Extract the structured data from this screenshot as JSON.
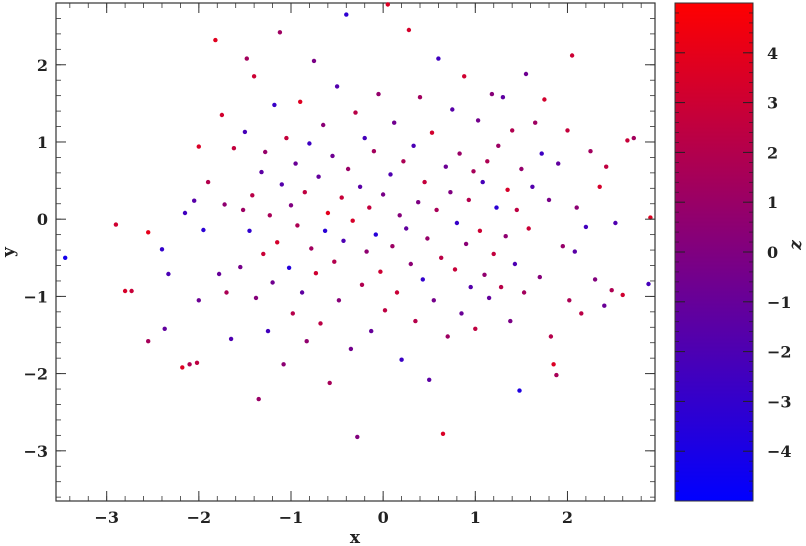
{
  "chart_data": {
    "type": "scatter",
    "title": "",
    "xlabel": "x",
    "ylabel": "y",
    "colorbar_label": "z",
    "xlim": [
      -3.55,
      2.95
    ],
    "ylim": [
      -3.65,
      2.8
    ],
    "zlim": [
      -5,
      5
    ],
    "x_ticks": [
      -3,
      -2,
      -1,
      0,
      1,
      2
    ],
    "y_ticks": [
      -3,
      -2,
      -1,
      0,
      1,
      2
    ],
    "z_ticks": [
      -4,
      -3,
      -2,
      -1,
      0,
      1,
      2,
      3,
      4
    ],
    "colormap": {
      "low": "#0000ff",
      "high": "#ff0000"
    },
    "grid": false,
    "legend": "none",
    "marker_size": 2.2,
    "points": [
      {
        "x": -3.45,
        "y": -0.5,
        "z": -4.2
      },
      {
        "x": -2.9,
        "y": -0.07,
        "z": 3.1
      },
      {
        "x": -2.8,
        "y": -0.93,
        "z": 3.4
      },
      {
        "x": -2.73,
        "y": -0.93,
        "z": 2.8
      },
      {
        "x": -2.55,
        "y": -1.58,
        "z": 1.5
      },
      {
        "x": -2.55,
        "y": -0.17,
        "z": 4.0
      },
      {
        "x": -2.4,
        "y": -0.39,
        "z": -3.0
      },
      {
        "x": -2.37,
        "y": -1.42,
        "z": -1.2
      },
      {
        "x": -2.33,
        "y": -0.71,
        "z": -2.1
      },
      {
        "x": -2.18,
        "y": -1.92,
        "z": 3.6
      },
      {
        "x": -2.15,
        "y": 0.08,
        "z": -2.5
      },
      {
        "x": -2.1,
        "y": -1.88,
        "z": 1.9
      },
      {
        "x": -2.05,
        "y": 0.24,
        "z": -1.6
      },
      {
        "x": -2.02,
        "y": -1.86,
        "z": 2.4
      },
      {
        "x": -2.0,
        "y": -1.05,
        "z": -0.8
      },
      {
        "x": -2.0,
        "y": 0.94,
        "z": 3.5
      },
      {
        "x": -1.95,
        "y": -0.14,
        "z": -3.3
      },
      {
        "x": -1.9,
        "y": 0.48,
        "z": 2.0
      },
      {
        "x": -1.82,
        "y": 2.32,
        "z": 3.8
      },
      {
        "x": -1.78,
        "y": -0.71,
        "z": -1.0
      },
      {
        "x": -1.75,
        "y": 1.35,
        "z": 3.2
      },
      {
        "x": -1.72,
        "y": 0.19,
        "z": 0.6
      },
      {
        "x": -1.7,
        "y": -0.95,
        "z": 1.7
      },
      {
        "x": -1.65,
        "y": -1.55,
        "z": -1.9
      },
      {
        "x": -1.62,
        "y": 0.92,
        "z": 2.6
      },
      {
        "x": -1.55,
        "y": -0.62,
        "z": -0.4
      },
      {
        "x": -1.52,
        "y": 0.12,
        "z": 1.1
      },
      {
        "x": -1.5,
        "y": 1.13,
        "z": -2.2
      },
      {
        "x": -1.48,
        "y": 2.08,
        "z": 1.4
      },
      {
        "x": -1.45,
        "y": -0.15,
        "z": -3.1
      },
      {
        "x": -1.42,
        "y": 0.31,
        "z": 2.2
      },
      {
        "x": -1.4,
        "y": 1.85,
        "z": 3.0
      },
      {
        "x": -1.38,
        "y": -1.02,
        "z": 0.2
      },
      {
        "x": -1.35,
        "y": -2.33,
        "z": 1.0
      },
      {
        "x": -1.32,
        "y": 0.61,
        "z": -1.4
      },
      {
        "x": -1.3,
        "y": -0.45,
        "z": 2.9
      },
      {
        "x": -1.28,
        "y": 0.87,
        "z": 0.9
      },
      {
        "x": -1.25,
        "y": -1.45,
        "z": -2.4
      },
      {
        "x": -1.23,
        "y": 0.05,
        "z": 1.6
      },
      {
        "x": -1.2,
        "y": -0.82,
        "z": -0.6
      },
      {
        "x": -1.18,
        "y": 1.48,
        "z": -2.8
      },
      {
        "x": -1.15,
        "y": -0.3,
        "z": 3.3
      },
      {
        "x": -1.12,
        "y": 2.42,
        "z": 1.2
      },
      {
        "x": -1.1,
        "y": 0.45,
        "z": -1.7
      },
      {
        "x": -1.08,
        "y": -1.88,
        "z": 0.5
      },
      {
        "x": -1.05,
        "y": 1.05,
        "z": 2.7
      },
      {
        "x": -1.02,
        "y": -0.63,
        "z": -3.6
      },
      {
        "x": -1.0,
        "y": 0.18,
        "z": 0.0
      },
      {
        "x": -0.98,
        "y": -1.22,
        "z": 2.1
      },
      {
        "x": -0.95,
        "y": 0.72,
        "z": -0.9
      },
      {
        "x": -0.93,
        "y": -0.08,
        "z": 1.8
      },
      {
        "x": -0.9,
        "y": 1.52,
        "z": 3.7
      },
      {
        "x": -0.88,
        "y": -0.95,
        "z": -1.3
      },
      {
        "x": -0.85,
        "y": 0.35,
        "z": 2.5
      },
      {
        "x": -0.83,
        "y": -1.58,
        "z": 0.7
      },
      {
        "x": -0.8,
        "y": 0.98,
        "z": -2.6
      },
      {
        "x": -0.78,
        "y": -0.38,
        "z": 1.3
      },
      {
        "x": -0.75,
        "y": 2.05,
        "z": -0.2
      },
      {
        "x": -0.73,
        "y": -0.7,
        "z": 3.1
      },
      {
        "x": -0.7,
        "y": 0.55,
        "z": -1.1
      },
      {
        "x": -0.68,
        "y": -1.35,
        "z": 2.3
      },
      {
        "x": -0.65,
        "y": 1.22,
        "z": 0.4
      },
      {
        "x": -0.63,
        "y": -0.15,
        "z": -3.4
      },
      {
        "x": -0.6,
        "y": 0.08,
        "z": 3.9
      },
      {
        "x": -0.58,
        "y": -2.12,
        "z": 1.5
      },
      {
        "x": -0.55,
        "y": 0.82,
        "z": -0.7
      },
      {
        "x": -0.53,
        "y": -0.55,
        "z": 2.0
      },
      {
        "x": -0.5,
        "y": 1.72,
        "z": -1.8
      },
      {
        "x": -0.48,
        "y": -1.05,
        "z": 0.3
      },
      {
        "x": -0.45,
        "y": 0.28,
        "z": 2.8
      },
      {
        "x": -0.43,
        "y": -0.28,
        "z": -2.0
      },
      {
        "x": -0.4,
        "y": 2.65,
        "z": -3.2
      },
      {
        "x": -0.38,
        "y": 0.65,
        "z": 1.0
      },
      {
        "x": -0.35,
        "y": -1.68,
        "z": -0.5
      },
      {
        "x": -0.33,
        "y": -0.02,
        "z": 3.4
      },
      {
        "x": -0.3,
        "y": 1.38,
        "z": 2.2
      },
      {
        "x": -0.28,
        "y": -2.82,
        "z": 0.1
      },
      {
        "x": -0.25,
        "y": 0.42,
        "z": -1.5
      },
      {
        "x": -0.23,
        "y": -0.85,
        "z": 1.9
      },
      {
        "x": -0.2,
        "y": 1.05,
        "z": -2.3
      },
      {
        "x": -0.18,
        "y": -0.42,
        "z": 0.6
      },
      {
        "x": -0.15,
        "y": 0.15,
        "z": 2.6
      },
      {
        "x": -0.13,
        "y": -1.45,
        "z": -1.0
      },
      {
        "x": -0.1,
        "y": 0.88,
        "z": 1.4
      },
      {
        "x": -0.08,
        "y": -0.2,
        "z": -3.5
      },
      {
        "x": -0.05,
        "y": 1.62,
        "z": 0.8
      },
      {
        "x": -0.03,
        "y": -0.68,
        "z": 3.0
      },
      {
        "x": 0.0,
        "y": 0.32,
        "z": -0.3
      },
      {
        "x": 0.02,
        "y": -1.18,
        "z": 2.4
      },
      {
        "x": 0.05,
        "y": 2.78,
        "z": 3.6
      },
      {
        "x": 0.08,
        "y": 0.58,
        "z": -1.9
      },
      {
        "x": 0.1,
        "y": -0.35,
        "z": 1.1
      },
      {
        "x": 0.12,
        "y": 1.25,
        "z": -0.6
      },
      {
        "x": 0.15,
        "y": -0.95,
        "z": 2.9
      },
      {
        "x": 0.18,
        "y": 0.05,
        "z": 0.2
      },
      {
        "x": 0.2,
        "y": -1.82,
        "z": -2.7
      },
      {
        "x": 0.22,
        "y": 0.75,
        "z": 1.7
      },
      {
        "x": 0.25,
        "y": -0.12,
        "z": -1.2
      },
      {
        "x": 0.28,
        "y": 2.45,
        "z": 3.3
      },
      {
        "x": 0.3,
        "y": -0.58,
        "z": 0.5
      },
      {
        "x": 0.33,
        "y": 0.95,
        "z": -2.1
      },
      {
        "x": 0.35,
        "y": -1.32,
        "z": 2.1
      },
      {
        "x": 0.38,
        "y": 0.22,
        "z": -0.1
      },
      {
        "x": 0.4,
        "y": 1.58,
        "z": 1.3
      },
      {
        "x": 0.43,
        "y": -0.78,
        "z": -3.0
      },
      {
        "x": 0.45,
        "y": 0.48,
        "z": 2.7
      },
      {
        "x": 0.48,
        "y": -0.25,
        "z": 0.9
      },
      {
        "x": 0.5,
        "y": -2.08,
        "z": -1.4
      },
      {
        "x": 0.53,
        "y": 1.12,
        "z": 3.2
      },
      {
        "x": 0.55,
        "y": -1.05,
        "z": -0.4
      },
      {
        "x": 0.58,
        "y": 0.12,
        "z": 1.6
      },
      {
        "x": 0.6,
        "y": 2.08,
        "z": -2.5
      },
      {
        "x": 0.63,
        "y": -0.5,
        "z": 2.3
      },
      {
        "x": 0.65,
        "y": -2.78,
        "z": 3.5
      },
      {
        "x": 0.68,
        "y": 0.68,
        "z": -0.8
      },
      {
        "x": 0.7,
        "y": -1.52,
        "z": 1.2
      },
      {
        "x": 0.73,
        "y": 0.35,
        "z": 0.0
      },
      {
        "x": 0.75,
        "y": 1.42,
        "z": -1.6
      },
      {
        "x": 0.78,
        "y": -0.65,
        "z": 2.8
      },
      {
        "x": 0.8,
        "y": -0.05,
        "z": -2.9
      },
      {
        "x": 0.83,
        "y": 0.85,
        "z": 1.0
      },
      {
        "x": 0.85,
        "y": -1.22,
        "z": -0.9
      },
      {
        "x": 0.88,
        "y": 1.85,
        "z": 3.1
      },
      {
        "x": 0.9,
        "y": -0.32,
        "z": 0.4
      },
      {
        "x": 0.93,
        "y": 0.25,
        "z": 2.0
      },
      {
        "x": 0.95,
        "y": -0.88,
        "z": -1.7
      },
      {
        "x": 0.98,
        "y": 0.62,
        "z": 1.5
      },
      {
        "x": 1.0,
        "y": -1.42,
        "z": 2.5
      },
      {
        "x": 1.03,
        "y": 1.28,
        "z": -0.5
      },
      {
        "x": 1.05,
        "y": -0.15,
        "z": 3.0
      },
      {
        "x": 1.08,
        "y": 0.48,
        "z": -2.2
      },
      {
        "x": 1.1,
        "y": -0.72,
        "z": 0.7
      },
      {
        "x": 1.13,
        "y": 0.75,
        "z": 1.8
      },
      {
        "x": 1.15,
        "y": -1.02,
        "z": -1.1
      },
      {
        "x": 1.18,
        "y": 1.62,
        "z": 0.3
      },
      {
        "x": 1.2,
        "y": -0.45,
        "z": 2.6
      },
      {
        "x": 1.23,
        "y": 0.15,
        "z": -3.3
      },
      {
        "x": 1.25,
        "y": 0.95,
        "z": 1.1
      },
      {
        "x": 1.28,
        "y": -0.88,
        "z": 2.2
      },
      {
        "x": 1.3,
        "y": 1.58,
        "z": -1.3
      },
      {
        "x": 1.33,
        "y": -0.22,
        "z": 0.6
      },
      {
        "x": 1.35,
        "y": 0.38,
        "z": 3.4
      },
      {
        "x": 1.38,
        "y": -1.32,
        "z": -0.2
      },
      {
        "x": 1.4,
        "y": 1.15,
        "z": 1.9
      },
      {
        "x": 1.43,
        "y": -0.58,
        "z": -2.0
      },
      {
        "x": 1.45,
        "y": 0.12,
        "z": 2.4
      },
      {
        "x": 1.48,
        "y": -2.22,
        "z": -3.8
      },
      {
        "x": 1.5,
        "y": 0.65,
        "z": 0.8
      },
      {
        "x": 1.53,
        "y": -0.95,
        "z": 1.4
      },
      {
        "x": 1.55,
        "y": 1.88,
        "z": -0.7
      },
      {
        "x": 1.58,
        "y": -0.12,
        "z": 2.9
      },
      {
        "x": 1.62,
        "y": 0.42,
        "z": -1.8
      },
      {
        "x": 1.65,
        "y": 1.25,
        "z": 1.2
      },
      {
        "x": 1.7,
        "y": -0.75,
        "z": 0.2
      },
      {
        "x": 1.72,
        "y": 0.85,
        "z": -2.6
      },
      {
        "x": 1.75,
        "y": 1.55,
        "z": 3.2
      },
      {
        "x": 1.8,
        "y": 0.25,
        "z": -0.3
      },
      {
        "x": 1.82,
        "y": -1.52,
        "z": 2.1
      },
      {
        "x": 1.85,
        "y": -1.88,
        "z": 3.6
      },
      {
        "x": 1.88,
        "y": -2.02,
        "z": 1.6
      },
      {
        "x": 1.9,
        "y": 0.72,
        "z": -1.2
      },
      {
        "x": 1.95,
        "y": -0.35,
        "z": 0.9
      },
      {
        "x": 2.0,
        "y": 1.15,
        "z": 2.7
      },
      {
        "x": 2.02,
        "y": -1.05,
        "z": 1.7
      },
      {
        "x": 2.05,
        "y": 2.12,
        "z": 3.0
      },
      {
        "x": 2.08,
        "y": -0.42,
        "z": -1.5
      },
      {
        "x": 2.1,
        "y": 0.15,
        "z": 0.5
      },
      {
        "x": 2.15,
        "y": -1.22,
        "z": 2.3
      },
      {
        "x": 2.2,
        "y": -0.1,
        "z": -2.4
      },
      {
        "x": 2.25,
        "y": 0.88,
        "z": 1.3
      },
      {
        "x": 2.3,
        "y": -0.78,
        "z": 0.1
      },
      {
        "x": 2.35,
        "y": 0.42,
        "z": 3.3
      },
      {
        "x": 2.4,
        "y": -1.12,
        "z": -0.9
      },
      {
        "x": 2.42,
        "y": 0.68,
        "z": 2.5
      },
      {
        "x": 2.48,
        "y": -0.92,
        "z": 1.8
      },
      {
        "x": 2.52,
        "y": -0.05,
        "z": -1.9
      },
      {
        "x": 2.6,
        "y": -0.98,
        "z": 3.1
      },
      {
        "x": 2.65,
        "y": 1.02,
        "z": 2.8
      },
      {
        "x": 2.72,
        "y": 1.05,
        "z": 1.4
      },
      {
        "x": 2.9,
        "y": 0.02,
        "z": 3.7
      },
      {
        "x": 2.88,
        "y": -0.84,
        "z": -2.3
      }
    ]
  }
}
